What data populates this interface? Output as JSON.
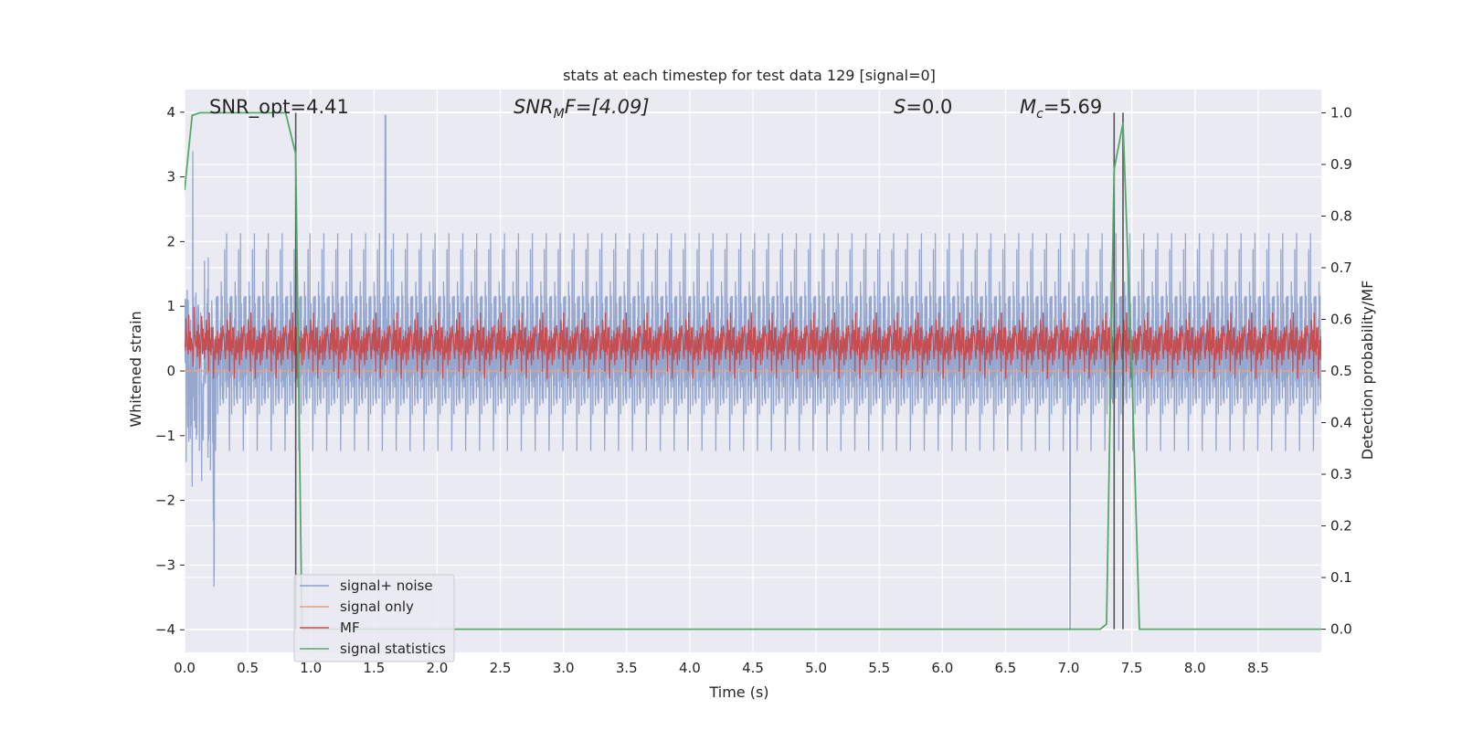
{
  "chart_data": {
    "type": "line",
    "title": "stats at each timestep for test data 129 [signal=0]",
    "xlabel": "Time (s)",
    "ylabel": "Whitened strain",
    "y2label": "Detection probability/MF",
    "xlim": [
      0.0,
      9.0
    ],
    "ylim": [
      -4.35,
      4.35
    ],
    "y2lim": [
      -0.045,
      1.045
    ],
    "x_ticks": [
      0.0,
      0.5,
      1.0,
      1.5,
      2.0,
      2.5,
      3.0,
      3.5,
      4.0,
      4.5,
      5.0,
      5.5,
      6.0,
      6.5,
      7.0,
      7.5,
      8.0,
      8.5
    ],
    "x_tick_labels": [
      "0.0",
      "0.5",
      "1.0",
      "1.5",
      "2.0",
      "2.5",
      "3.0",
      "3.5",
      "4.0",
      "4.5",
      "5.0",
      "5.5",
      "6.0",
      "6.5",
      "7.0",
      "7.5",
      "8.0",
      "8.5"
    ],
    "y_ticks": [
      -4,
      -3,
      -2,
      -1,
      0,
      1,
      2,
      3,
      4
    ],
    "y_tick_labels": [
      "−4",
      "−3",
      "−2",
      "−1",
      "0",
      "1",
      "2",
      "3",
      "4"
    ],
    "y2_ticks": [
      0.0,
      0.1,
      0.2,
      0.3,
      0.4,
      0.5,
      0.6,
      0.7,
      0.8,
      0.9,
      1.0
    ],
    "y2_tick_labels": [
      "0.0",
      "0.1",
      "0.2",
      "0.3",
      "0.4",
      "0.5",
      "0.6",
      "0.7",
      "0.8",
      "0.9",
      "1.0"
    ],
    "grid": true,
    "legend_position": "lower-left",
    "annotations": {
      "snr_opt": "SNR_opt=4.41",
      "snr_mf_main": "SNR",
      "snr_mf_sub": "M",
      "snr_mf_rest": "F=[4.09]",
      "s_main": "S",
      "s_rest": "=0.0",
      "mc_main": "M",
      "mc_sub": "c",
      "mc_rest": "=5.69"
    },
    "vlines_x": [
      0.88,
      7.36,
      7.43
    ],
    "series": [
      {
        "name": "signal+ noise",
        "color": "#8da0cb",
        "axis": "left",
        "kind": "noise",
        "band": 1.0,
        "peak": 3.95,
        "peak_x": 1.59,
        "min": -4.0,
        "min_x": 7.01
      },
      {
        "name": "signal only",
        "color": "#e8a07b",
        "axis": "left",
        "kind": "flat",
        "values": [
          [
            0.0,
            0.0
          ],
          [
            9.0,
            0.0
          ]
        ]
      },
      {
        "name": "MF",
        "color": "#c44e52",
        "axis": "right",
        "kind": "noise_band",
        "center": 0.545,
        "band": 0.04,
        "max": 0.625
      },
      {
        "name": "signal statistics",
        "color": "#55a868",
        "axis": "right",
        "points": [
          [
            0.0,
            0.85
          ],
          [
            0.06,
            0.995
          ],
          [
            0.12,
            1.0
          ],
          [
            0.8,
            1.0
          ],
          [
            0.88,
            0.92
          ],
          [
            0.93,
            0.0
          ],
          [
            7.25,
            0.0
          ],
          [
            7.3,
            0.01
          ],
          [
            7.36,
            0.89
          ],
          [
            7.43,
            0.98
          ],
          [
            7.5,
            0.5
          ],
          [
            7.56,
            0.0
          ],
          [
            9.0,
            0.0
          ]
        ]
      }
    ]
  }
}
